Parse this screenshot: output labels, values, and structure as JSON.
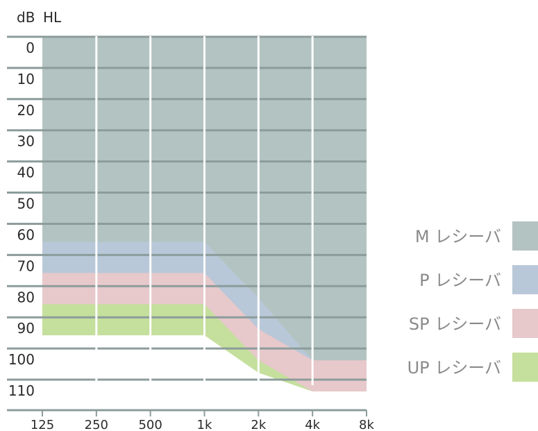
{
  "chart_data": {
    "type": "area",
    "ylabel": "dB",
    "ylabel2": "HL",
    "x": [
      "125",
      "250",
      "500",
      "1k",
      "2k",
      "4k",
      "8k"
    ],
    "y_ticks": [
      "0",
      "10",
      "20",
      "30",
      "40",
      "50",
      "60",
      "70",
      "80",
      "90",
      "100",
      "110"
    ],
    "ylim": [
      -4,
      114
    ],
    "y_inverted": true,
    "grid": true,
    "legend_position": "right",
    "series": [
      {
        "name": "M レシーバ",
        "color": "#b3c3c1",
        "values": [
          62,
          62,
          62,
          62,
          80,
          100,
          100
        ]
      },
      {
        "name": "P レシーバ",
        "color": "#b9c8d8",
        "values": [
          72,
          72,
          72,
          72,
          90,
          100,
          100
        ]
      },
      {
        "name": "SP レシーバ",
        "color": "#e7c8cb",
        "values": [
          82,
          82,
          82,
          82,
          100,
          110,
          110
        ]
      },
      {
        "name": "UP レシーバ",
        "color": "#c5df9d",
        "values": [
          92,
          92,
          92,
          92,
          104,
          110,
          110
        ]
      }
    ]
  },
  "colors": {
    "grid": "#8c9c9b",
    "plot_background": "#aabcbd"
  }
}
